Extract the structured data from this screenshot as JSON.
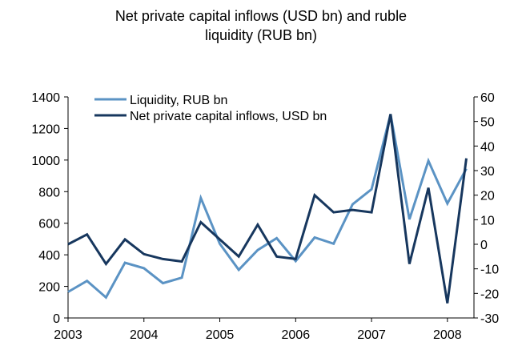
{
  "chart_data": {
    "type": "line",
    "title_line1": "Net private capital inflows (USD bn) and ruble",
    "title_line2": "liquidity (RUB bn)",
    "x_tick_labels": [
      "2003",
      "2004",
      "2005",
      "2006",
      "2007",
      "2008"
    ],
    "left_axis": {
      "ylim": [
        0,
        1400
      ],
      "tick_labels": [
        "0",
        "200",
        "400",
        "600",
        "800",
        "1000",
        "1200",
        "1400"
      ]
    },
    "right_axis": {
      "ylim": [
        -30,
        60
      ],
      "tick_labels": [
        "-30",
        "-20",
        "-10",
        "0",
        "10",
        "20",
        "30",
        "40",
        "50",
        "60"
      ]
    },
    "legend_position": "top-left",
    "grid": false,
    "series": [
      {
        "name": "Liquidity, RUB bn",
        "axis": "left",
        "color": "#5b93c4",
        "x": [
          2003.0,
          2003.25,
          2003.5,
          2003.75,
          2004.0,
          2004.25,
          2004.5,
          2004.75,
          2005.0,
          2005.25,
          2005.5,
          2005.75,
          2006.0,
          2006.25,
          2006.5,
          2006.75,
          2007.0,
          2007.25,
          2007.5,
          2007.75,
          2008.0,
          2008.25
        ],
        "values": [
          165,
          235,
          130,
          350,
          315,
          220,
          255,
          760,
          470,
          305,
          430,
          505,
          360,
          510,
          470,
          720,
          815,
          1290,
          625,
          995,
          725,
          945
        ]
      },
      {
        "name": "Net private capital inflows, USD bn",
        "axis": "right",
        "color": "#17375e",
        "x": [
          2003.0,
          2003.25,
          2003.5,
          2003.75,
          2004.0,
          2004.25,
          2004.5,
          2004.75,
          2005.0,
          2005.25,
          2005.5,
          2005.75,
          2006.0,
          2006.25,
          2006.5,
          2006.75,
          2007.0,
          2007.25,
          2007.5,
          2007.75,
          2008.0,
          2008.25
        ],
        "values": [
          0,
          4,
          -8,
          2,
          -4,
          -6,
          -7,
          9,
          2,
          -5,
          8,
          -5,
          -6,
          20,
          13,
          14,
          13,
          53,
          -8,
          23,
          -24,
          35
        ]
      }
    ]
  }
}
